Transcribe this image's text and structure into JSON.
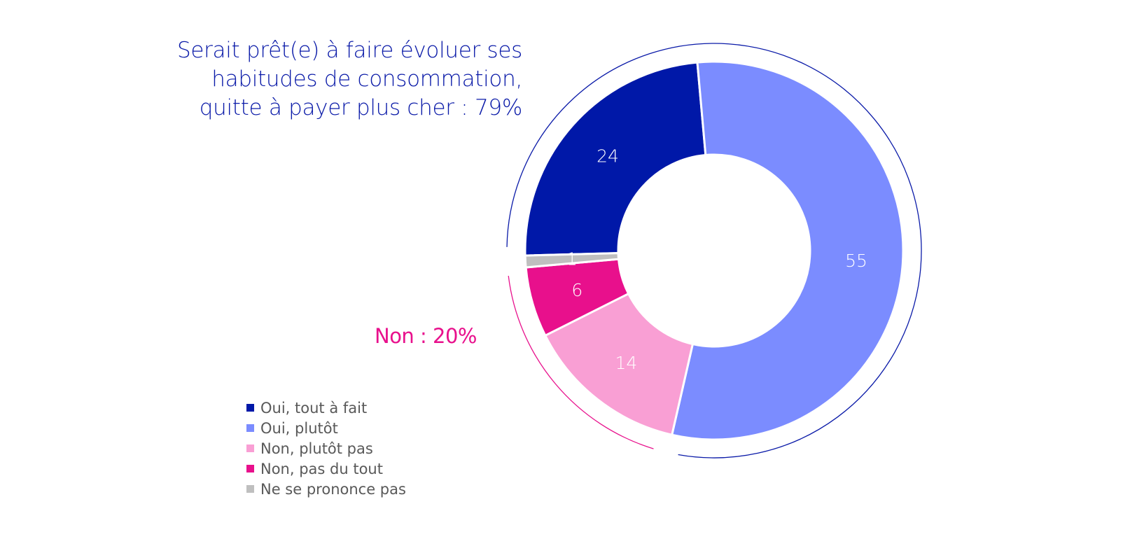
{
  "chart_data": {
    "type": "donut",
    "title_lines": [
      "Serait prêt(e) à faire évoluer ses",
      "habitudes de consommation,",
      "quitte à payer plus cher : 79%"
    ],
    "non_label": "Non : 20%",
    "categories": [
      "Oui, tout à fait",
      "Oui, plutôt",
      "Non, plutôt pas",
      "Non, pas du tout",
      "Ne se prononce pas"
    ],
    "values": [
      24,
      55,
      14,
      6,
      1
    ],
    "labels": [
      "24",
      "55",
      "14",
      "6",
      "1"
    ],
    "colors": [
      "#0018a8",
      "#7b8cff",
      "#f99fd4",
      "#e8108c",
      "#bfbfbf"
    ],
    "group_arcs": [
      {
        "group": "Oui",
        "value": 79,
        "color": "#0a1aa8"
      },
      {
        "group": "Non",
        "value": 20,
        "color": "#e8108c"
      }
    ],
    "legend_position": "bottom-left"
  }
}
